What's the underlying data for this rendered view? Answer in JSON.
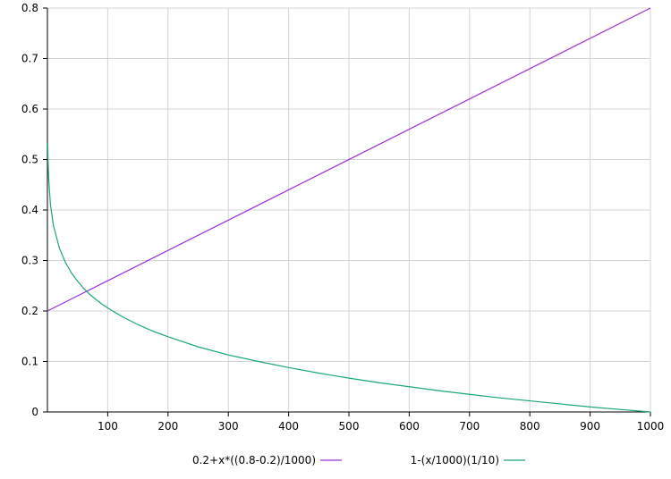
{
  "chart_data": {
    "type": "line",
    "title": "",
    "xlabel": "",
    "ylabel": "",
    "xlim": [
      0,
      1000
    ],
    "ylim": [
      0,
      0.8
    ],
    "grid": true,
    "legend_position": "bottom",
    "x_ticks": [
      100,
      200,
      300,
      400,
      500,
      600,
      700,
      800,
      900,
      1000
    ],
    "x_tick_labels": [
      "100",
      "200",
      "300",
      "400",
      "500",
      "600",
      "700",
      "800",
      "900",
      "1000"
    ],
    "y_ticks": [
      0,
      0.1,
      0.2,
      0.3,
      0.4,
      0.5,
      0.6,
      0.7,
      0.8
    ],
    "y_tick_labels": [
      "0",
      "0.1",
      "0.2",
      "0.3",
      "0.4",
      "0.5",
      "0.6",
      "0.7",
      "0.8"
    ],
    "series": [
      {
        "name": "0.2+x*((0.8-0.2)/1000)",
        "color": "#9b30d9",
        "x": [
          0,
          1000
        ],
        "y": [
          0.2,
          0.8
        ]
      },
      {
        "name": "1-(x/1000)^(1/10)",
        "legend_label": "1-(x/1000)(1/10)",
        "color": "#1aa57a",
        "x": [
          0.5,
          1,
          2,
          5,
          10,
          20,
          30,
          40,
          50,
          60,
          70,
          80,
          90,
          100,
          125,
          150,
          175,
          200,
          250,
          300,
          350,
          400,
          450,
          500,
          550,
          600,
          650,
          700,
          750,
          800,
          850,
          900,
          950,
          1000
        ],
        "y": [
          0.532,
          0.499,
          0.463,
          0.411,
          0.369,
          0.324,
          0.296,
          0.275,
          0.259,
          0.245,
          0.233,
          0.223,
          0.214,
          0.206,
          0.188,
          0.173,
          0.16,
          0.149,
          0.129,
          0.113,
          0.1,
          0.088,
          0.077,
          0.067,
          0.058,
          0.05,
          0.042,
          0.035,
          0.028,
          0.022,
          0.016,
          0.01,
          0.005,
          0.0
        ]
      }
    ]
  }
}
